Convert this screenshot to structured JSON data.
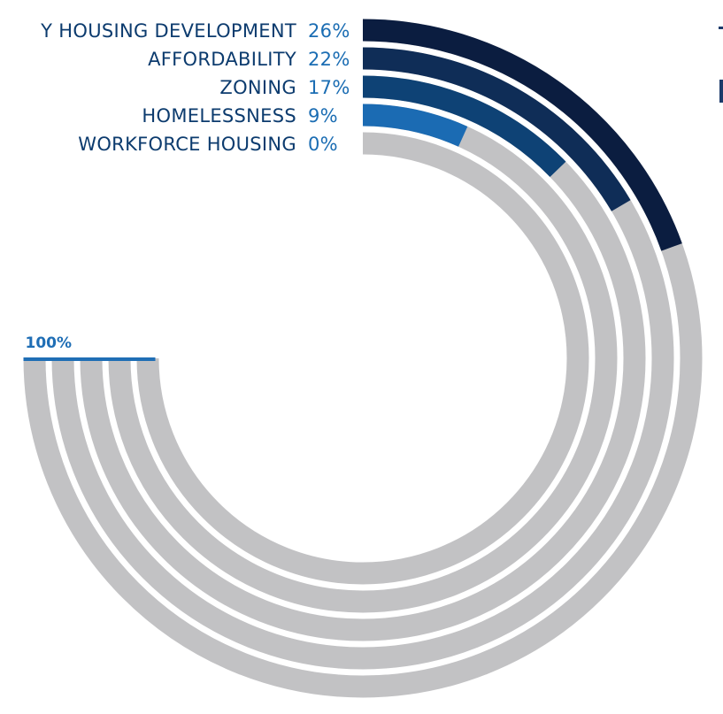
{
  "chart_data": {
    "type": "radial-bar",
    "max": 100,
    "max_label": "100%",
    "categories": [
      "Y HOUSING DEVELOPMENT",
      "AFFORDABILITY",
      "ZONING",
      "HOMELESSNESS",
      "WORKFORCE HOUSING"
    ],
    "values": [
      26,
      22,
      17,
      9,
      0
    ],
    "value_labels": [
      "26%",
      "22%",
      "17%",
      "9%",
      "0%"
    ],
    "colors": {
      "series": [
        "#0b1d40",
        "#0f2d57",
        "#0e4275",
        "#1b6bb3",
        "#2a7bc4"
      ],
      "track": "#c2c2c4",
      "accent": "#1f6eb5",
      "category_text": "#0c3b6e",
      "value_text": "#1b6db3"
    }
  }
}
